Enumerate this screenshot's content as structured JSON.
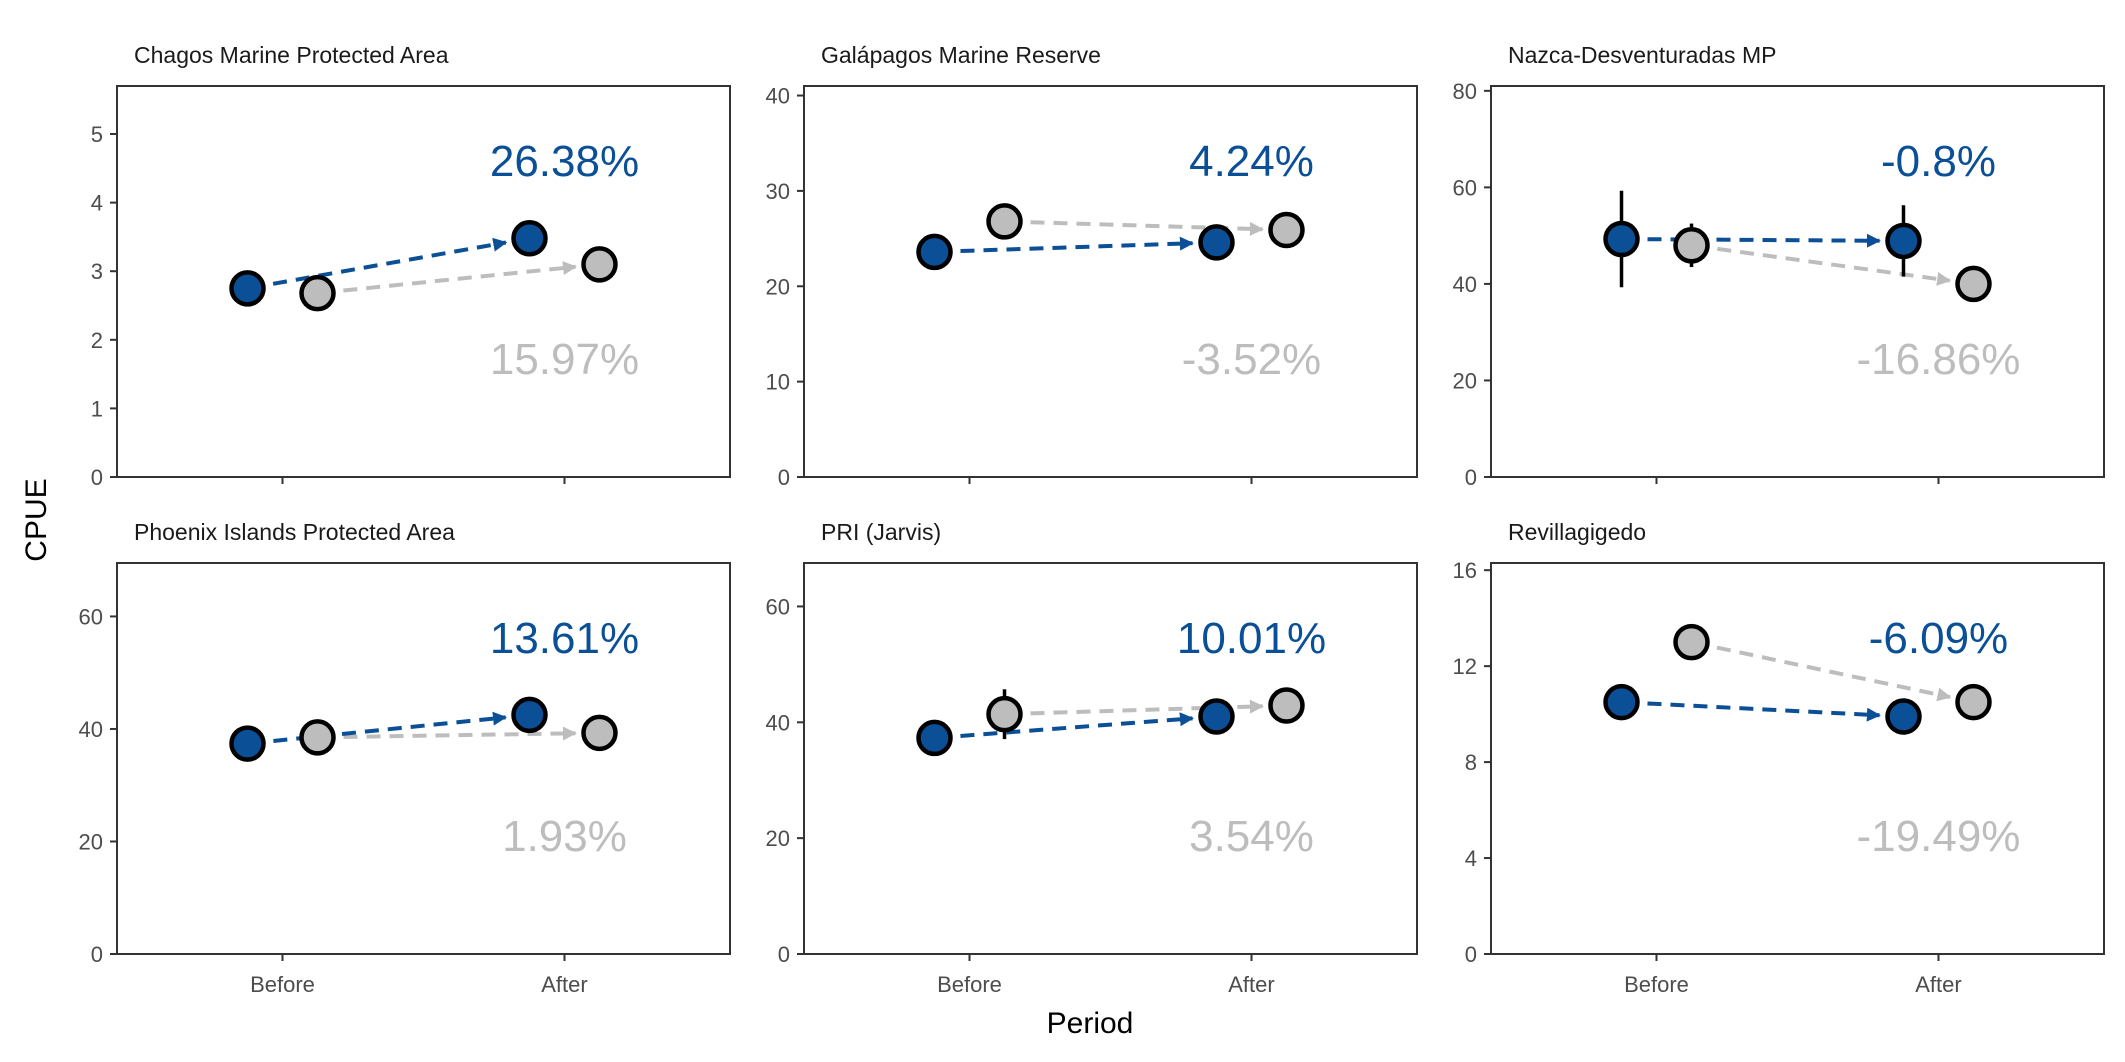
{
  "figure": {
    "xlabel": "Period",
    "ylabel": "CPUE"
  },
  "colors": {
    "mpa": "#0b4f96",
    "control": "#bdbdbd",
    "outline": "#000000",
    "errorbar": "#000000"
  },
  "chart_data": [
    {
      "type": "scatter",
      "title": "Chagos Marine Protected Area",
      "categories": [
        "Before",
        "After"
      ],
      "ylim": [
        0,
        5.7
      ],
      "yticks": [
        0,
        1,
        2,
        3,
        4,
        5
      ],
      "series": [
        {
          "values": [
            2.75,
            3.48
          ],
          "errors": [
            0,
            0
          ],
          "change_label": "26.38%"
        },
        {
          "values": [
            2.68,
            3.1
          ],
          "errors": [
            0,
            0
          ],
          "change_label": "15.97%"
        }
      ]
    },
    {
      "type": "scatter",
      "title": "Galápagos Marine Reserve",
      "categories": [
        "Before",
        "After"
      ],
      "ylim": [
        0,
        41
      ],
      "yticks": [
        0,
        10,
        20,
        30,
        40
      ],
      "series": [
        {
          "values": [
            23.6,
            24.6
          ],
          "errors": [
            0,
            0
          ],
          "change_label": "4.24%"
        },
        {
          "values": [
            26.8,
            25.9
          ],
          "errors": [
            0,
            0
          ],
          "change_label": "-3.52%"
        }
      ]
    },
    {
      "type": "scatter",
      "title": "Nazca-Desventuradas MP",
      "categories": [
        "Before",
        "After"
      ],
      "ylim": [
        0,
        81
      ],
      "yticks": [
        0,
        20,
        40,
        60,
        80
      ],
      "series": [
        {
          "values": [
            49.3,
            48.9
          ],
          "errors": [
            10.0,
            7.4
          ],
          "change_label": "-0.8%"
        },
        {
          "values": [
            48.0,
            40.0
          ],
          "errors": [
            4.5,
            0
          ],
          "change_label": "-16.86%"
        }
      ]
    },
    {
      "type": "scatter",
      "title": "Phoenix Islands Protected Area",
      "categories": [
        "Before",
        "After"
      ],
      "ylim": [
        0,
        69.5
      ],
      "yticks": [
        0,
        20,
        40,
        60
      ],
      "series": [
        {
          "values": [
            37.4,
            42.5
          ],
          "errors": [
            0,
            0
          ],
          "change_label": "13.61%"
        },
        {
          "values": [
            38.5,
            39.3
          ],
          "errors": [
            0,
            0
          ],
          "change_label": "1.93%"
        }
      ]
    },
    {
      "type": "scatter",
      "title": "PRI (Jarvis)",
      "categories": [
        "Before",
        "After"
      ],
      "ylim": [
        0,
        67.5
      ],
      "yticks": [
        0,
        20,
        40,
        60
      ],
      "series": [
        {
          "values": [
            37.3,
            41.0
          ],
          "errors": [
            0,
            0
          ],
          "change_label": "10.01%"
        },
        {
          "values": [
            41.4,
            42.9
          ],
          "errors": [
            4.3,
            0
          ],
          "change_label": "3.54%"
        }
      ]
    },
    {
      "type": "scatter",
      "title": "Revillagigedo",
      "categories": [
        "Before",
        "After"
      ],
      "ylim": [
        0,
        16.3
      ],
      "yticks": [
        0,
        4,
        8,
        12,
        16
      ],
      "series": [
        {
          "values": [
            10.5,
            9.9
          ],
          "errors": [
            0,
            0
          ],
          "change_label": "-6.09%"
        },
        {
          "values": [
            13.0,
            10.5
          ],
          "errors": [
            0,
            0
          ],
          "change_label": "-19.49%"
        }
      ]
    }
  ]
}
